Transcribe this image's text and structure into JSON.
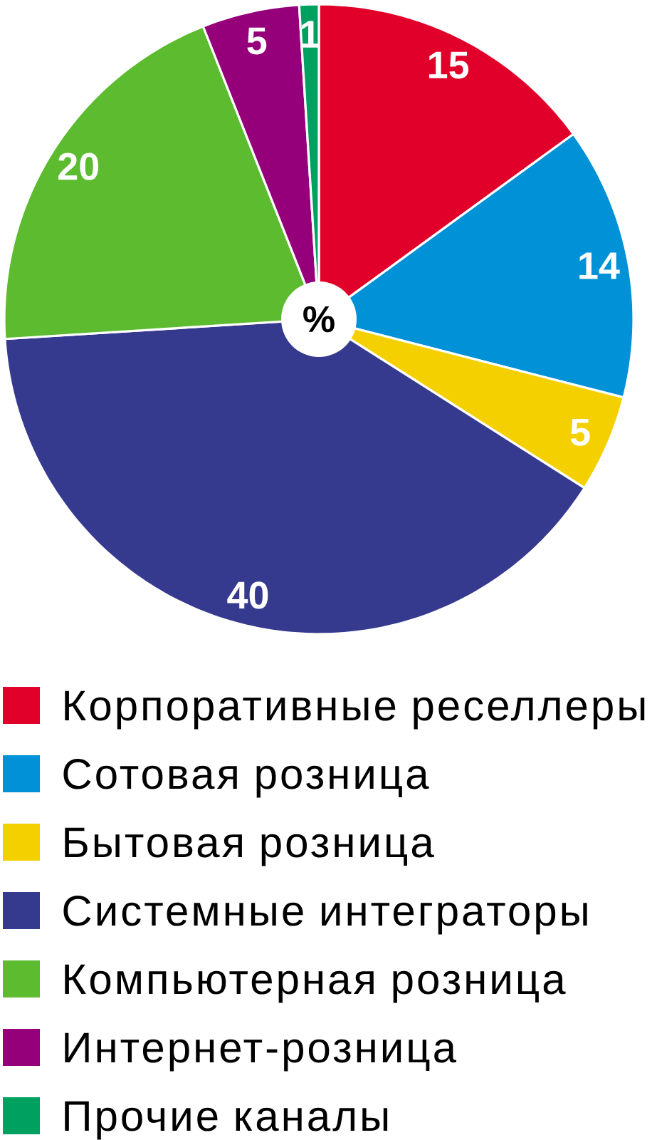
{
  "chart_data": {
    "type": "pie",
    "categories": [
      "Корпоративные реселлеры",
      "Сотовая розница",
      "Бытовая розница",
      "Системные интеграторы",
      "Компьютерная розница",
      "Интернет-розница",
      "Прочие каналы"
    ],
    "values": [
      15,
      14,
      5,
      40,
      20,
      5,
      1
    ],
    "colors": [
      "#e0002a",
      "#0091d6",
      "#f5d000",
      "#363a8e",
      "#5cbb2f",
      "#95007a",
      "#00a060"
    ],
    "data_labels": true,
    "legend": "bottom",
    "annotations": [
      "%"
    ]
  }
}
